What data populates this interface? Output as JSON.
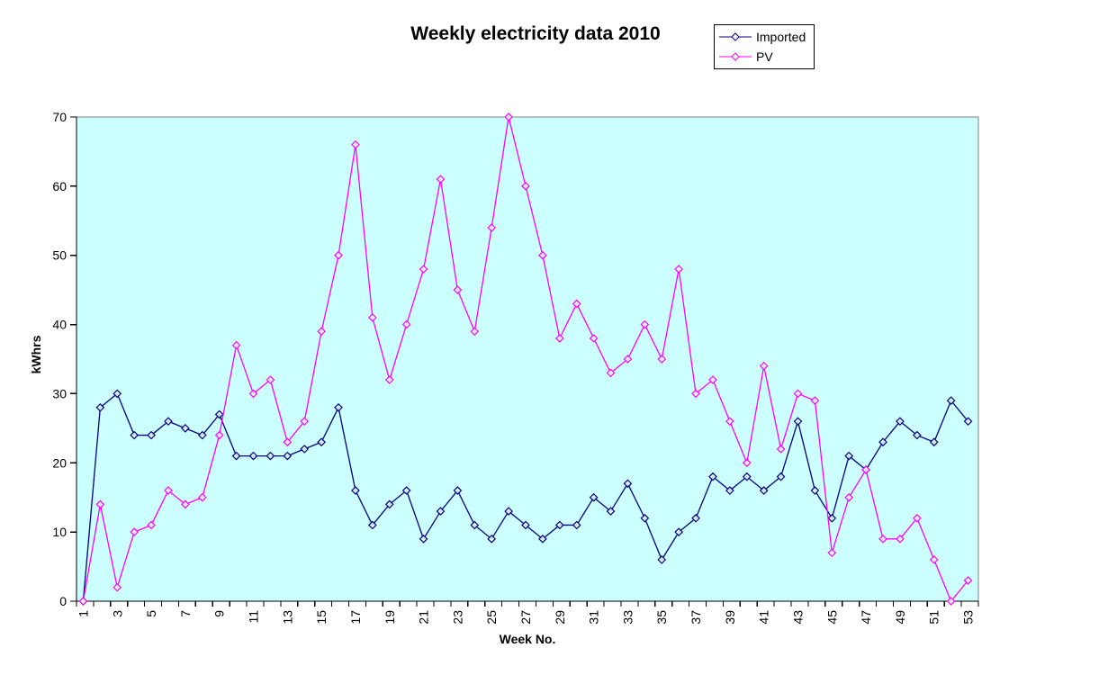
{
  "title": "Weekly electricity data 2010",
  "legend": {
    "position": "top-right",
    "items": [
      {
        "label": "Imported",
        "color": "#000080"
      },
      {
        "label": "PV",
        "color": "#FF00FF"
      }
    ]
  },
  "chart_data": {
    "type": "line",
    "title": "Weekly electricity data 2010",
    "xlabel": "Week No.",
    "ylabel": "kWhrs",
    "ylim": [
      0,
      70
    ],
    "y_ticks": [
      0,
      10,
      20,
      30,
      40,
      50,
      60,
      70
    ],
    "x_ticks_labeled": [
      1,
      3,
      5,
      7,
      9,
      11,
      13,
      15,
      17,
      19,
      21,
      23,
      25,
      27,
      29,
      31,
      33,
      35,
      37,
      39,
      41,
      43,
      45,
      47,
      49,
      51,
      53
    ],
    "x_tick_label_rotation_deg": -90,
    "grid": false,
    "plot_bg": "#CCFFFF",
    "plot_border_color": "#808080",
    "axis_color": "#000000",
    "marker": "diamond",
    "x": [
      1,
      2,
      3,
      4,
      5,
      6,
      7,
      8,
      9,
      10,
      11,
      12,
      13,
      14,
      15,
      16,
      17,
      18,
      19,
      20,
      21,
      22,
      23,
      24,
      25,
      26,
      27,
      28,
      29,
      30,
      31,
      32,
      33,
      34,
      35,
      36,
      37,
      38,
      39,
      40,
      41,
      42,
      43,
      44,
      45,
      46,
      47,
      48,
      49,
      50,
      51,
      52,
      53
    ],
    "series": [
      {
        "name": "Imported",
        "color": "#000080",
        "values": [
          0,
          28,
          30,
          24,
          24,
          26,
          25,
          24,
          27,
          21,
          21,
          21,
          21,
          22,
          23,
          28,
          16,
          11,
          14,
          16,
          9,
          13,
          16,
          11,
          9,
          13,
          11,
          9,
          11,
          11,
          15,
          13,
          17,
          12,
          6,
          10,
          12,
          18,
          16,
          18,
          16,
          18,
          26,
          16,
          12,
          21,
          19,
          23,
          26,
          24,
          23,
          29,
          26
        ]
      },
      {
        "name": "PV",
        "color": "#FF00FF",
        "values": [
          0,
          14,
          2,
          10,
          11,
          16,
          14,
          15,
          24,
          37,
          30,
          32,
          23,
          26,
          39,
          50,
          66,
          41,
          32,
          40,
          48,
          61,
          45,
          39,
          54,
          70,
          60,
          50,
          38,
          43,
          38,
          33,
          35,
          40,
          35,
          48,
          30,
          32,
          26,
          20,
          34,
          22,
          30,
          29,
          7,
          15,
          19,
          9,
          9,
          12,
          6,
          0,
          3
        ]
      }
    ]
  }
}
